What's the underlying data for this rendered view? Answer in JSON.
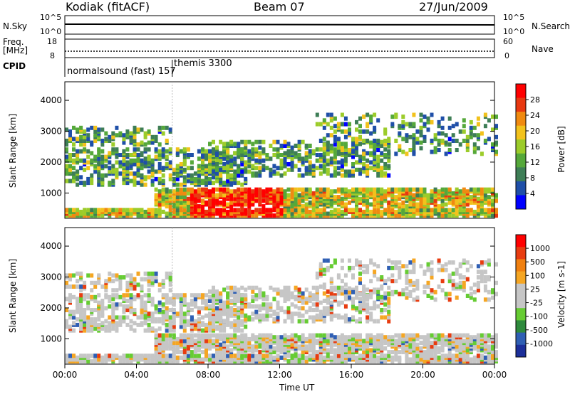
{
  "header": {
    "station": "Kodiak (fitACF)",
    "beam": "Beam 07",
    "date": "27/Jun/2009"
  },
  "top_panels": {
    "nsky_label": "N.Sky",
    "nsky_ticks": [
      "10^5",
      "10^0"
    ],
    "nsearch_label": "N.Search",
    "nsearch_ticks": [
      "10^5",
      "10^0"
    ],
    "freq_label_1": "Freq.",
    "freq_label_2": "[MHz]",
    "freq_ticks": [
      "18",
      "8"
    ],
    "nave_label": "Nave",
    "nave_ticks": [
      "60",
      "0"
    ],
    "cpid_label": "CPID",
    "cpid_segments": [
      {
        "text": "normalsound (fast) 157",
        "start_hour": 0.0
      },
      {
        "text": "themis 3300",
        "start_hour": 6.0
      }
    ]
  },
  "chart_data": [
    {
      "type": "heatmap",
      "title": "Power",
      "ylabel": "Slant Range [km]",
      "ylim": [
        180,
        4600
      ],
      "xlim_hours": [
        0,
        24
      ],
      "yticks": [
        "4000",
        "3000",
        "2000",
        "1000"
      ],
      "colorbar": {
        "label": "Power [dB]",
        "ticks": [
          "28",
          "24",
          "20",
          "16",
          "12",
          "8",
          "4"
        ],
        "colors": [
          "#0000ff",
          "#1f4fa8",
          "#3e7e56",
          "#55a83a",
          "#9ccc2a",
          "#f2c21c",
          "#f08a10",
          "#e83810",
          "#ff0000"
        ]
      }
    },
    {
      "type": "heatmap",
      "title": "Velocity",
      "ylabel": "Slant Range [km]",
      "ylim": [
        180,
        4600
      ],
      "xlim_hours": [
        0,
        24
      ],
      "yticks": [
        "4000",
        "3000",
        "2000",
        "1000"
      ],
      "colorbar": {
        "label": "Velocity [m s-1]",
        "ticks": [
          "1000",
          "500",
          "100",
          "25",
          "-25",
          "-100",
          "-500",
          "-1000"
        ],
        "colors": [
          "#1c2f9a",
          "#2f5fb4",
          "#2e8a3c",
          "#66cc33",
          "#c6c6c6",
          "#c6c6c6",
          "#f5a623",
          "#f08010",
          "#e83c10",
          "#ff0000"
        ]
      }
    }
  ],
  "xaxis": {
    "ticks": [
      "00:00",
      "04:00",
      "08:00",
      "12:00",
      "16:00",
      "20:00",
      "00:00"
    ],
    "label": "Time UT"
  }
}
